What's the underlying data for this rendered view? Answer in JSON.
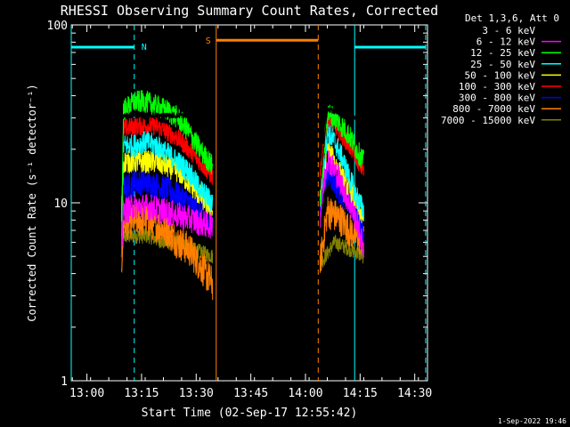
{
  "chart_data": {
    "type": "line",
    "title": "RHESSI Observing Summary Count Rates, Corrected",
    "xlabel": "Start Time (02-Sep-17 12:55:42)",
    "ylabel": "Corrected Count Rate (s⁻¹ detector⁻¹)",
    "y_scale": "log",
    "ylim": [
      1,
      100
    ],
    "xlim": [
      "12:55:42",
      "14:33:30"
    ],
    "x_ticks": [
      "13:00",
      "13:15",
      "13:30",
      "13:45",
      "14:00",
      "14:15",
      "14:30"
    ],
    "y_ticks": [
      "1",
      "10",
      "100"
    ],
    "legend_header": "Det 1,3,6, Att 0",
    "legend_position": "top-right outside",
    "series": [
      {
        "name": "3 - 6 keV",
        "color": "#000000",
        "x": [
          "13:09:30",
          "13:10:00",
          "13:12:00",
          "13:15:00",
          "13:18:00",
          "13:22:00",
          "13:26:00",
          "13:30:00",
          "13:33:00",
          "13:34:30"
        ],
        "y": [
          29,
          31,
          31,
          31,
          31,
          31,
          31,
          31,
          31,
          31
        ],
        "x2": [
          "14:04:00",
          "14:06:00",
          "14:08:00",
          "14:10:00",
          "14:12:00",
          "14:14:00",
          "14:16:00"
        ],
        "y2": [
          12,
          33,
          33,
          32,
          31,
          30,
          30
        ]
      },
      {
        "name": "6 - 12 keV",
        "color": "#ff00ff",
        "x": [
          "13:09:30",
          "13:10:00",
          "13:13:00",
          "13:17:00",
          "13:21:00",
          "13:25:00",
          "13:29:00",
          "13:33:00",
          "13:34:30"
        ],
        "y": [
          5.5,
          9.0,
          9.5,
          9.5,
          9.0,
          8.5,
          8.0,
          7.5,
          7.5
        ],
        "x2": [
          "14:04:00",
          "14:06:00",
          "14:09:00",
          "14:12:00",
          "14:14:00",
          "14:16:00"
        ],
        "y2": [
          8.5,
          18,
          14,
          10,
          8,
          5.5
        ]
      },
      {
        "name": "12 - 25 keV",
        "color": "#00ff00",
        "x": [
          "13:09:30",
          "13:10:00",
          "13:13:00",
          "13:16:00",
          "13:19:00",
          "13:22:00",
          "13:25:00",
          "13:28:00",
          "13:31:00",
          "13:34:30"
        ],
        "y": [
          5.0,
          33,
          37,
          37,
          35,
          33,
          30,
          25,
          20,
          16
        ],
        "x2": [
          "14:04:00",
          "14:06:00",
          "14:08:00",
          "14:10:00",
          "14:12:00",
          "14:14:00",
          "14:16:00"
        ],
        "y2": [
          10,
          32,
          30,
          27,
          24,
          20,
          17
        ]
      },
      {
        "name": "25 - 50 keV",
        "color": "#00ffff",
        "x": [
          "13:09:30",
          "13:10:00",
          "13:13:00",
          "13:16:00",
          "13:19:00",
          "13:22:00",
          "13:25:00",
          "13:28:00",
          "13:31:00",
          "13:34:30"
        ],
        "y": [
          9,
          21,
          21,
          22,
          21,
          19,
          17,
          15,
          12,
          10
        ],
        "x2": [
          "14:04:00",
          "14:06:00",
          "14:08:00",
          "14:10:00",
          "14:12:00",
          "14:14:00",
          "14:16:00"
        ],
        "y2": [
          10,
          25,
          22,
          18,
          14,
          11,
          9
        ]
      },
      {
        "name": "50 - 100 keV",
        "color": "#ffff00",
        "x": [
          "13:09:30",
          "13:10:00",
          "13:13:00",
          "13:16:00",
          "13:19:00",
          "13:22:00",
          "13:25:00",
          "13:28:00",
          "13:31:00",
          "13:34:30"
        ],
        "y": [
          8,
          17,
          17,
          17,
          17,
          16,
          15,
          13,
          11,
          9
        ],
        "x2": [
          "14:04:00",
          "14:06:00",
          "14:08:00",
          "14:10:00",
          "14:12:00",
          "14:14:00",
          "14:16:00"
        ],
        "y2": [
          11,
          20,
          17,
          14,
          12,
          10,
          8
        ]
      },
      {
        "name": "100 - 300 keV",
        "color": "#ff0000",
        "x": [
          "13:09:30",
          "13:10:00",
          "13:13:00",
          "13:16:00",
          "13:19:00",
          "13:22:00",
          "13:25:00",
          "13:28:00",
          "13:31:00",
          "13:34:30"
        ],
        "y": [
          6,
          26,
          27,
          27,
          27,
          25,
          23,
          20,
          17,
          14
        ],
        "x2": [
          "14:04:00",
          "14:06:00",
          "14:08:00",
          "14:10:00",
          "14:12:00",
          "14:14:00",
          "14:16:00"
        ],
        "y2": [
          14,
          30,
          27,
          24,
          21,
          18,
          15
        ]
      },
      {
        "name": "300 - 800 keV",
        "color": "#0000ff",
        "x": [
          "13:09:30",
          "13:10:00",
          "13:13:00",
          "13:16:00",
          "13:19:00",
          "13:22:00",
          "13:25:00",
          "13:28:00",
          "13:31:00",
          "13:34:30"
        ],
        "y": [
          7,
          12,
          13,
          13,
          12.5,
          12,
          11,
          10,
          9,
          7.5
        ],
        "x2": [
          "14:04:00",
          "14:06:00",
          "14:08:00",
          "14:10:00",
          "14:12:00",
          "14:14:00",
          "14:16:00"
        ],
        "y2": [
          10,
          15,
          13,
          11,
          10,
          8.5,
          7
        ]
      },
      {
        "name": "800 - 7000 keV",
        "color": "#ff7f00",
        "x": [
          "13:09:30",
          "13:10:00",
          "13:13:00",
          "13:16:00",
          "13:19:00",
          "13:22:00",
          "13:25:00",
          "13:28:00",
          "13:31:00",
          "13:34:30"
        ],
        "y": [
          4.5,
          7.5,
          8,
          8,
          7.5,
          7,
          6,
          5.5,
          4.5,
          3.5
        ],
        "x2": [
          "14:04:00",
          "14:06:00",
          "14:08:00",
          "14:10:00",
          "14:12:00",
          "14:14:00",
          "14:16:00"
        ],
        "y2": [
          4.5,
          9,
          8.5,
          8,
          7,
          6.5,
          6
        ]
      },
      {
        "name": "7000 - 15000 keV",
        "color": "#808000",
        "x": [
          "13:09:30",
          "13:10:00",
          "13:13:00",
          "13:17:00",
          "13:21:00",
          "13:25:00",
          "13:29:00",
          "13:34:30"
        ],
        "y": [
          4.0,
          6.5,
          6.5,
          6.5,
          6.0,
          6.0,
          5.5,
          5.0
        ],
        "x2": [
          "14:04:00",
          "14:08:00",
          "14:12:00",
          "14:16:00"
        ],
        "y2": [
          4.5,
          6.0,
          5.5,
          5.0
        ]
      }
    ],
    "annotations": {
      "night_label": "N",
      "saa_label": "S",
      "night_color": "#00ffff",
      "saa_color": "#ff7f00",
      "night_segments": [
        [
          "12:55:42",
          "13:13:00"
        ],
        [
          "14:13:30",
          "14:33:00"
        ]
      ],
      "saa_segments": [
        [
          "13:35:30",
          "14:03:30"
        ]
      ],
      "night_level": 75,
      "saa_level": 82,
      "solid_lines": [
        {
          "t": "12:55:42",
          "color": "#00ffff"
        },
        {
          "t": "13:35:30",
          "color": "#ff7f00"
        },
        {
          "t": "14:13:30",
          "color": "#00ffff"
        }
      ],
      "dashed_lines": [
        {
          "t": "13:13:00",
          "color": "#00ffff"
        },
        {
          "t": "14:03:30",
          "color": "#ff7f00"
        },
        {
          "t": "14:33:00",
          "color": "#00ffff"
        }
      ]
    },
    "grid": false,
    "legend": [
      "3 - 6 keV",
      "6 - 12 keV",
      "12 - 25 keV",
      "25 - 50 keV",
      "50 - 100 keV",
      "100 - 300 keV",
      "300 - 800 keV",
      "800 - 7000 keV",
      "7000 - 15000 keV"
    ]
  },
  "footer_timestamp": "1-Sep-2022 19:46",
  "colors": {
    "background": "#000000",
    "foreground": "#ffffff"
  }
}
